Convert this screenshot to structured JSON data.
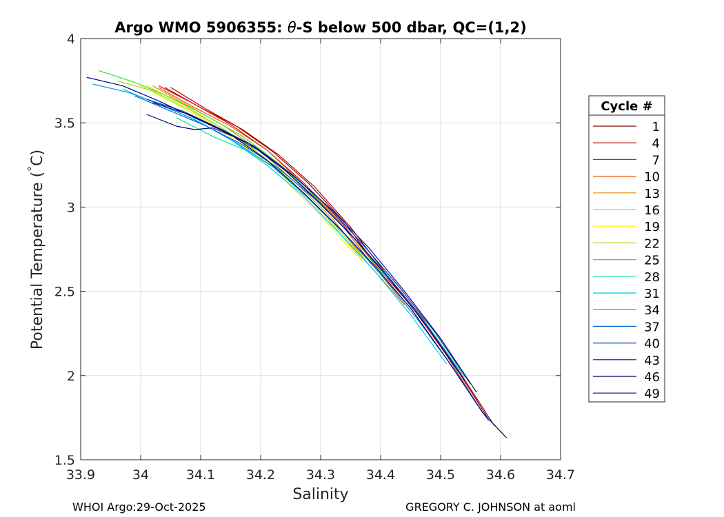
{
  "chart_data": {
    "type": "line",
    "title_prefix": "Argo WMO 5906355: ",
    "title_theta": "θ",
    "title_suffix": "-S below 500 dbar,  QC=(1,2)",
    "xlabel": "Salinity",
    "ylabel_prefix": "Potential Temperature (",
    "ylabel_degree": "°",
    "ylabel_suffix": "C)",
    "xlim": [
      33.9,
      34.7
    ],
    "ylim": [
      1.5,
      4
    ],
    "x_ticks": [
      33.9,
      34.0,
      34.1,
      34.2,
      34.3,
      34.4,
      34.5,
      34.6,
      34.7
    ],
    "x_tick_labels": [
      "33.9",
      "34",
      "34.1",
      "34.2",
      "34.3",
      "34.4",
      "34.5",
      "34.6",
      "34.7"
    ],
    "y_ticks": [
      1.5,
      2,
      2.5,
      3,
      3.5,
      4
    ],
    "y_tick_labels": [
      "1.5",
      "2",
      "2.5",
      "3",
      "3.5",
      "4"
    ],
    "grid": true,
    "legend": {
      "title": "Cycle #",
      "placement": "right-outside",
      "entries": [
        {
          "label": "1",
          "color": "#800000"
        },
        {
          "label": "4",
          "color": "#b30000"
        },
        {
          "label": "7",
          "color": "#d91a00"
        },
        {
          "label": "10",
          "color": "#f24d00"
        },
        {
          "label": "13",
          "color": "#e68a00"
        },
        {
          "label": "16",
          "color": "#e6c800"
        },
        {
          "label": "19",
          "color": "#f2f200"
        },
        {
          "label": "22",
          "color": "#9ae600"
        },
        {
          "label": "25",
          "color": "#33e633"
        },
        {
          "label": "28",
          "color": "#00e6a0"
        },
        {
          "label": "31",
          "color": "#00ccdd"
        },
        {
          "label": "34",
          "color": "#0099e6"
        },
        {
          "label": "37",
          "color": "#0066cc"
        },
        {
          "label": "40",
          "color": "#0033b3"
        },
        {
          "label": "43",
          "color": "#00108c"
        },
        {
          "label": "46",
          "color": "#00006b"
        },
        {
          "label": "49",
          "color": "#000080"
        }
      ]
    },
    "series": [
      {
        "name": "1",
        "color": "#800000",
        "points": [
          [
            34.04,
            3.71
          ],
          [
            34.1,
            3.59
          ],
          [
            34.16,
            3.48
          ],
          [
            34.22,
            3.33
          ],
          [
            34.28,
            3.14
          ],
          [
            34.34,
            2.91
          ],
          [
            34.4,
            2.62
          ],
          [
            34.46,
            2.38
          ],
          [
            34.52,
            2.08
          ],
          [
            34.58,
            1.74
          ]
        ]
      },
      {
        "name": "4",
        "color": "#b30000",
        "points": [
          [
            34.05,
            3.71
          ],
          [
            34.11,
            3.58
          ],
          [
            34.17,
            3.46
          ],
          [
            34.23,
            3.31
          ],
          [
            34.29,
            3.12
          ],
          [
            34.35,
            2.88
          ],
          [
            34.41,
            2.6
          ],
          [
            34.47,
            2.34
          ],
          [
            34.53,
            2.03
          ],
          [
            34.59,
            1.7
          ]
        ]
      },
      {
        "name": "7",
        "color": "#d91a00",
        "points": [
          [
            34.03,
            3.72
          ],
          [
            34.09,
            3.61
          ],
          [
            34.15,
            3.49
          ],
          [
            34.21,
            3.34
          ],
          [
            34.27,
            3.15
          ],
          [
            34.33,
            2.93
          ],
          [
            34.39,
            2.66
          ],
          [
            34.45,
            2.42
          ],
          [
            34.51,
            2.12
          ],
          [
            34.57,
            1.78
          ]
        ]
      },
      {
        "name": "10",
        "color": "#f24d00",
        "points": [
          [
            34.03,
            3.71
          ],
          [
            34.09,
            3.59
          ],
          [
            34.15,
            3.48
          ],
          [
            34.21,
            3.34
          ],
          [
            34.27,
            3.14
          ],
          [
            34.33,
            2.92
          ],
          [
            34.39,
            2.64
          ],
          [
            34.45,
            2.4
          ],
          [
            34.51,
            2.1
          ]
        ]
      },
      {
        "name": "13",
        "color": "#e68a00",
        "points": [
          [
            34.02,
            3.72
          ],
          [
            34.08,
            3.6
          ],
          [
            34.14,
            3.48
          ],
          [
            34.2,
            3.33
          ],
          [
            34.26,
            3.14
          ],
          [
            34.32,
            2.93
          ],
          [
            34.38,
            2.66
          ],
          [
            34.44,
            2.42
          ]
        ]
      },
      {
        "name": "16",
        "color": "#e6c800",
        "points": [
          [
            34.01,
            3.72
          ],
          [
            34.07,
            3.61
          ],
          [
            34.13,
            3.48
          ],
          [
            34.19,
            3.34
          ],
          [
            34.25,
            3.16
          ],
          [
            34.31,
            2.94
          ],
          [
            34.37,
            2.68
          ]
        ]
      },
      {
        "name": "19",
        "color": "#f2f200",
        "points": [
          [
            34.0,
            3.72
          ],
          [
            34.06,
            3.61
          ],
          [
            34.12,
            3.49
          ],
          [
            34.18,
            3.34
          ],
          [
            34.24,
            3.16
          ],
          [
            34.3,
            2.95
          ],
          [
            34.36,
            2.71
          ]
        ]
      },
      {
        "name": "22",
        "color": "#9ae600",
        "points": [
          [
            33.96,
            3.75
          ],
          [
            34.02,
            3.69
          ],
          [
            34.08,
            3.58
          ],
          [
            34.14,
            3.46
          ],
          [
            34.2,
            3.31
          ],
          [
            34.26,
            3.12
          ],
          [
            34.32,
            2.91
          ],
          [
            34.38,
            2.66
          ]
        ]
      },
      {
        "name": "25",
        "color": "#33e633",
        "points": [
          [
            33.93,
            3.81
          ],
          [
            33.99,
            3.74
          ],
          [
            34.05,
            3.65
          ],
          [
            34.11,
            3.54
          ],
          [
            34.17,
            3.42
          ],
          [
            34.23,
            3.26
          ],
          [
            34.29,
            3.06
          ],
          [
            34.35,
            2.84
          ],
          [
            34.41,
            2.58
          ]
        ]
      },
      {
        "name": "28",
        "color": "#00e6a0",
        "points": [
          [
            34.06,
            3.53
          ],
          [
            34.12,
            3.42
          ],
          [
            34.18,
            3.33
          ],
          [
            34.24,
            3.2
          ],
          [
            34.3,
            3.02
          ],
          [
            34.36,
            2.8
          ],
          [
            34.42,
            2.55
          ],
          [
            34.48,
            2.29
          ],
          [
            34.54,
            1.99
          ]
        ]
      },
      {
        "name": "31",
        "color": "#00ccdd",
        "points": [
          [
            33.97,
            3.7
          ],
          [
            34.03,
            3.61
          ],
          [
            34.09,
            3.52
          ],
          [
            34.15,
            3.4
          ],
          [
            34.21,
            3.25
          ],
          [
            34.27,
            3.07
          ],
          [
            34.33,
            2.85
          ],
          [
            34.39,
            2.62
          ],
          [
            34.45,
            2.36
          ],
          [
            34.51,
            2.07
          ]
        ]
      },
      {
        "name": "34",
        "color": "#0099e6",
        "points": [
          [
            33.92,
            3.73
          ],
          [
            33.98,
            3.68
          ],
          [
            34.04,
            3.6
          ],
          [
            34.1,
            3.5
          ],
          [
            34.16,
            3.38
          ],
          [
            34.22,
            3.24
          ],
          [
            34.28,
            3.05
          ],
          [
            34.34,
            2.84
          ],
          [
            34.4,
            2.6
          ],
          [
            34.46,
            2.34
          ],
          [
            34.52,
            2.05
          ],
          [
            34.58,
            1.73
          ]
        ]
      },
      {
        "name": "37",
        "color": "#0066cc",
        "points": [
          [
            33.99,
            3.66
          ],
          [
            34.05,
            3.57
          ],
          [
            34.11,
            3.48
          ],
          [
            34.17,
            3.37
          ],
          [
            34.23,
            3.23
          ],
          [
            34.29,
            3.05
          ],
          [
            34.35,
            2.84
          ],
          [
            34.41,
            2.6
          ],
          [
            34.47,
            2.33
          ],
          [
            34.53,
            2.03
          ]
        ]
      },
      {
        "name": "40",
        "color": "#0033b3",
        "points": [
          [
            34.01,
            3.64
          ],
          [
            34.07,
            3.57
          ],
          [
            34.13,
            3.47
          ],
          [
            34.19,
            3.36
          ],
          [
            34.25,
            3.2
          ],
          [
            34.31,
            3.01
          ],
          [
            34.37,
            2.78
          ],
          [
            34.43,
            2.53
          ],
          [
            34.49,
            2.26
          ],
          [
            34.55,
            1.95
          ]
        ]
      },
      {
        "name": "43",
        "color": "#00108c",
        "points": [
          [
            34.02,
            3.62
          ],
          [
            34.08,
            3.55
          ],
          [
            34.14,
            3.45
          ],
          [
            34.2,
            3.33
          ],
          [
            34.26,
            3.17
          ],
          [
            34.32,
            2.98
          ],
          [
            34.38,
            2.76
          ],
          [
            34.44,
            2.5
          ],
          [
            34.5,
            2.22
          ],
          [
            34.56,
            1.9
          ]
        ]
      },
      {
        "name": "46",
        "color": "#00006b",
        "points": [
          [
            34.01,
            3.55
          ],
          [
            34.06,
            3.48
          ],
          [
            34.09,
            3.46
          ],
          [
            34.12,
            3.47
          ],
          [
            34.18,
            3.38
          ],
          [
            34.24,
            3.22
          ],
          [
            34.3,
            3.02
          ],
          [
            34.36,
            2.8
          ],
          [
            34.42,
            2.55
          ],
          [
            34.48,
            2.28
          ],
          [
            34.54,
            1.97
          ]
        ]
      },
      {
        "name": "49",
        "color": "#000080",
        "points": [
          [
            33.91,
            3.77
          ],
          [
            33.97,
            3.72
          ],
          [
            34.03,
            3.63
          ],
          [
            34.09,
            3.53
          ],
          [
            34.15,
            3.43
          ],
          [
            34.21,
            3.28
          ],
          [
            34.27,
            3.09
          ],
          [
            34.33,
            2.88
          ],
          [
            34.39,
            2.65
          ],
          [
            34.45,
            2.4
          ],
          [
            34.51,
            2.1
          ],
          [
            34.57,
            1.78
          ],
          [
            34.61,
            1.63
          ]
        ]
      }
    ]
  },
  "footer": {
    "left": "WHOI Argo:29-Oct-2025",
    "right": "GREGORY C. JOHNSON at aoml"
  }
}
